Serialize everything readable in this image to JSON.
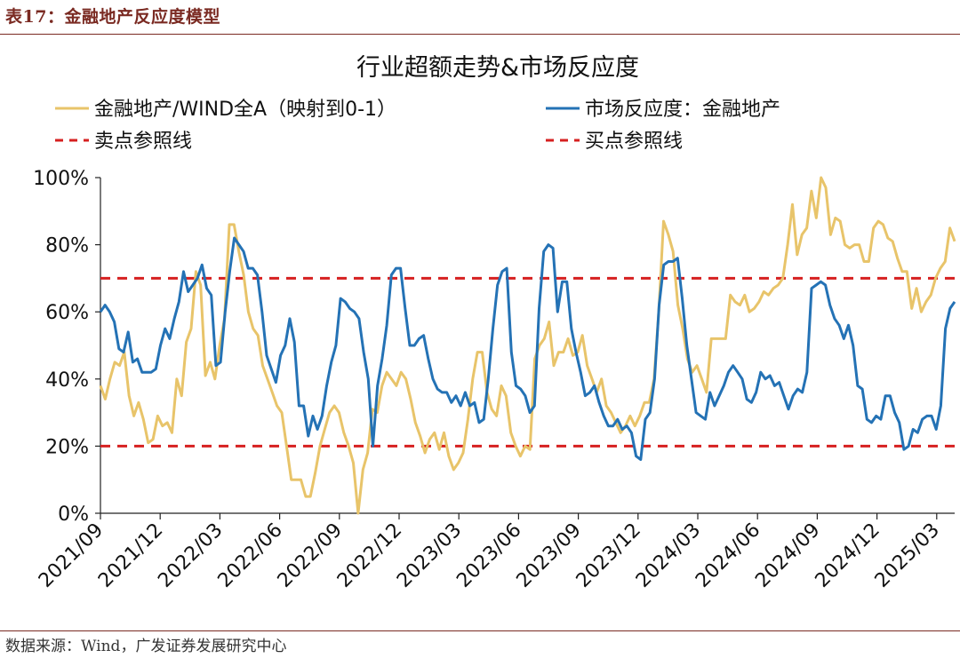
{
  "caption": "表17：金融地产反应度模型",
  "source": "数据来源：Wind，广发证券发展研究中心",
  "colors": {
    "series_yellow": "#E8C46A",
    "series_blue": "#2472B5",
    "reference_red": "#D62020",
    "caption_brown": "#7a2a22"
  },
  "chart_data": {
    "type": "line",
    "title": "行业超额走势&市场反应度",
    "xlabel": "",
    "ylabel": "",
    "ylim": [
      0,
      1
    ],
    "yticks": [
      "0%",
      "20%",
      "40%",
      "60%",
      "80%",
      "100%"
    ],
    "x_tick_labels": [
      "2021/09",
      "2021/12",
      "2022/03",
      "2022/06",
      "2022/09",
      "2022/12",
      "2023/03",
      "2023/06",
      "2023/09",
      "2023/12",
      "2024/03",
      "2024/06",
      "2024/09",
      "2024/12",
      "2025/03"
    ],
    "x_start": "2021/09",
    "x_end": "2025/04",
    "legend": {
      "placement": "top",
      "items": [
        {
          "label": "金融地产/WIND全A（映射到0-1）",
          "style": "line",
          "color": "#E8C46A"
        },
        {
          "label": "市场反应度：金融地产",
          "style": "line",
          "color": "#2472B5"
        },
        {
          "label": "卖点参照线",
          "style": "dashed",
          "color": "#D62020"
        },
        {
          "label": "买点参照线",
          "style": "dashed",
          "color": "#D62020"
        }
      ]
    },
    "reference_lines": [
      {
        "name": "卖点参照线",
        "y": 0.7
      },
      {
        "name": "买点参照线",
        "y": 0.2
      }
    ],
    "series": [
      {
        "name": "金融地产/WIND全A（映射到0-1）",
        "color": "#E8C46A",
        "values": [
          0.38,
          0.34,
          0.4,
          0.45,
          0.44,
          0.48,
          0.35,
          0.29,
          0.33,
          0.28,
          0.21,
          0.22,
          0.29,
          0.26,
          0.27,
          0.24,
          0.4,
          0.35,
          0.51,
          0.55,
          0.72,
          0.68,
          0.41,
          0.45,
          0.4,
          0.5,
          0.58,
          0.86,
          0.86,
          0.78,
          0.71,
          0.6,
          0.55,
          0.53,
          0.44,
          0.4,
          0.36,
          0.32,
          0.3,
          0.2,
          0.1,
          0.1,
          0.1,
          0.05,
          0.05,
          0.12,
          0.2,
          0.25,
          0.3,
          0.32,
          0.3,
          0.24,
          0.2,
          0.15,
          0.0,
          0.13,
          0.18,
          0.31,
          0.3,
          0.38,
          0.42,
          0.4,
          0.38,
          0.42,
          0.4,
          0.34,
          0.27,
          0.23,
          0.18,
          0.22,
          0.24,
          0.19,
          0.24,
          0.17,
          0.13,
          0.15,
          0.18,
          0.28,
          0.4,
          0.48,
          0.48,
          0.36,
          0.31,
          0.29,
          0.38,
          0.35,
          0.24,
          0.2,
          0.17,
          0.2,
          0.19,
          0.46,
          0.5,
          0.52,
          0.57,
          0.44,
          0.48,
          0.48,
          0.52,
          0.47,
          0.48,
          0.53,
          0.44,
          0.4,
          0.36,
          0.4,
          0.32,
          0.3,
          0.27,
          0.24,
          0.26,
          0.29,
          0.26,
          0.29,
          0.33,
          0.33,
          0.4,
          0.6,
          0.87,
          0.83,
          0.78,
          0.62,
          0.55,
          0.46,
          0.42,
          0.44,
          0.4,
          0.36,
          0.52,
          0.52,
          0.52,
          0.52,
          0.65,
          0.63,
          0.62,
          0.65,
          0.6,
          0.61,
          0.63,
          0.66,
          0.65,
          0.67,
          0.68,
          0.7,
          0.8,
          0.92,
          0.77,
          0.83,
          0.85,
          0.96,
          0.88,
          1.0,
          0.97,
          0.83,
          0.88,
          0.87,
          0.8,
          0.79,
          0.8,
          0.8,
          0.75,
          0.75,
          0.85,
          0.87,
          0.86,
          0.82,
          0.81,
          0.76,
          0.72,
          0.72,
          0.61,
          0.67,
          0.6,
          0.63,
          0.65,
          0.7,
          0.73,
          0.75,
          0.85,
          0.81
        ]
      },
      {
        "name": "市场反应度：金融地产",
        "color": "#2472B5",
        "values": [
          0.6,
          0.62,
          0.6,
          0.57,
          0.49,
          0.48,
          0.54,
          0.45,
          0.46,
          0.42,
          0.42,
          0.42,
          0.43,
          0.5,
          0.55,
          0.52,
          0.58,
          0.63,
          0.72,
          0.66,
          0.68,
          0.7,
          0.74,
          0.67,
          0.65,
          0.44,
          0.45,
          0.6,
          0.72,
          0.82,
          0.8,
          0.78,
          0.73,
          0.73,
          0.71,
          0.6,
          0.47,
          0.43,
          0.39,
          0.47,
          0.5,
          0.58,
          0.51,
          0.32,
          0.32,
          0.23,
          0.29,
          0.25,
          0.29,
          0.38,
          0.45,
          0.5,
          0.64,
          0.63,
          0.61,
          0.6,
          0.58,
          0.48,
          0.4,
          0.2,
          0.38,
          0.46,
          0.56,
          0.71,
          0.73,
          0.73,
          0.61,
          0.5,
          0.5,
          0.52,
          0.53,
          0.46,
          0.4,
          0.37,
          0.36,
          0.36,
          0.33,
          0.35,
          0.32,
          0.36,
          0.32,
          0.33,
          0.27,
          0.28,
          0.4,
          0.55,
          0.68,
          0.72,
          0.73,
          0.48,
          0.38,
          0.37,
          0.35,
          0.3,
          0.32,
          0.61,
          0.78,
          0.8,
          0.79,
          0.6,
          0.69,
          0.69,
          0.55,
          0.48,
          0.42,
          0.35,
          0.36,
          0.38,
          0.33,
          0.29,
          0.26,
          0.26,
          0.28,
          0.25,
          0.26,
          0.24,
          0.17,
          0.16,
          0.28,
          0.3,
          0.4,
          0.62,
          0.74,
          0.75,
          0.75,
          0.76,
          0.64,
          0.5,
          0.4,
          0.3,
          0.29,
          0.28,
          0.36,
          0.32,
          0.35,
          0.38,
          0.42,
          0.44,
          0.42,
          0.4,
          0.34,
          0.33,
          0.36,
          0.42,
          0.4,
          0.41,
          0.38,
          0.39,
          0.35,
          0.31,
          0.35,
          0.37,
          0.36,
          0.42,
          0.67,
          0.68,
          0.69,
          0.68,
          0.62,
          0.58,
          0.56,
          0.52,
          0.56,
          0.5,
          0.38,
          0.37,
          0.28,
          0.27,
          0.29,
          0.28,
          0.35,
          0.35,
          0.3,
          0.27,
          0.19,
          0.2,
          0.25,
          0.24,
          0.28,
          0.29,
          0.29,
          0.25,
          0.32,
          0.55,
          0.61,
          0.63
        ]
      }
    ]
  }
}
